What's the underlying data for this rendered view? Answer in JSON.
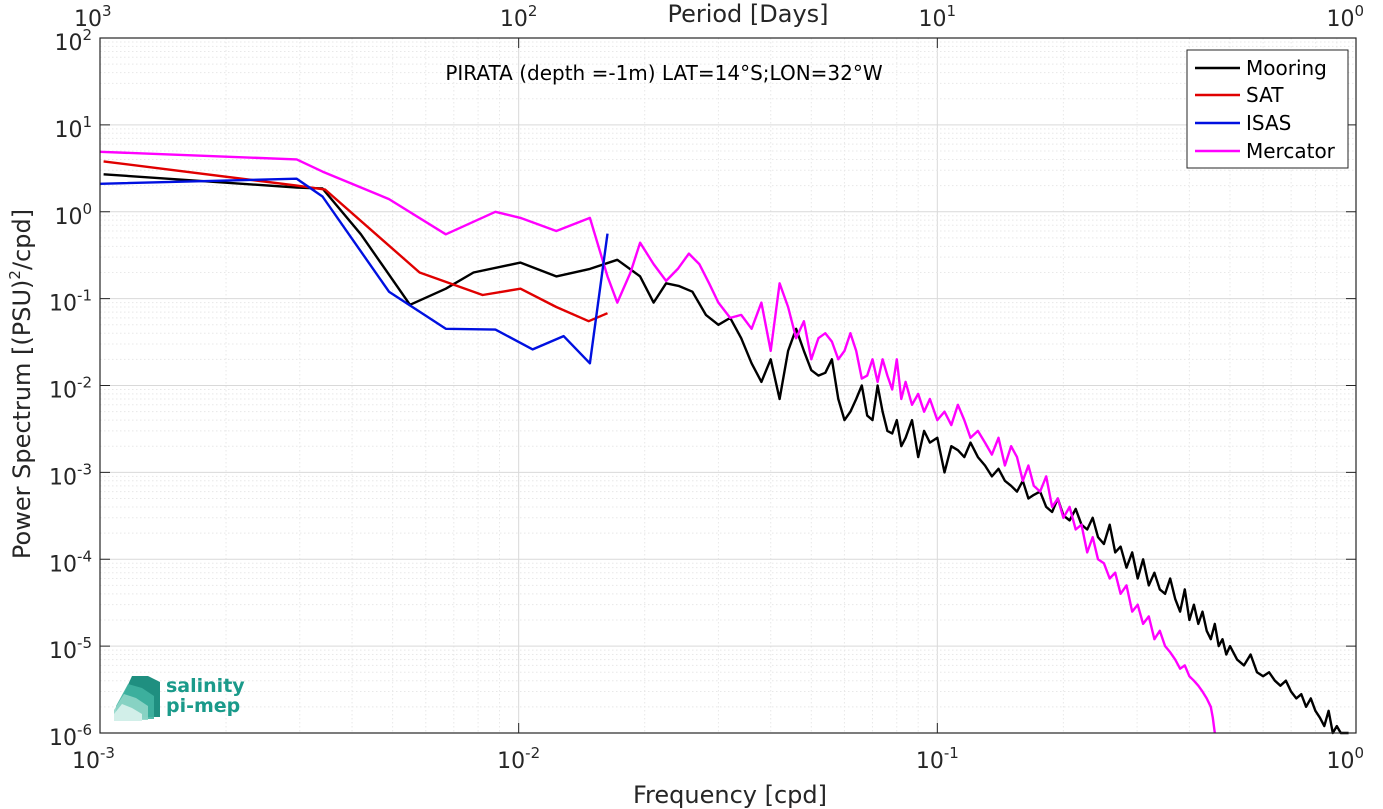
{
  "chart_data": {
    "type": "line",
    "title": "PIRATA (depth =-1m) LAT=14°S;LON=32°W",
    "xlabel": "Frequency [cpd]",
    "ylabel": "Power Spectrum [(PSU)^2/cpd]",
    "ylabel_parts": {
      "base": "Power Spectrum [(PSU)",
      "sup": "2",
      "tail": "/cpd]"
    },
    "x2label": "Period [Days]",
    "xscale": "log",
    "yscale": "log",
    "xlim": [
      0.001,
      1
    ],
    "ylim": [
      1e-06,
      100
    ],
    "grid": true,
    "legend_position": "top-right",
    "x_ticks": [
      {
        "value": 0.001,
        "base": "10",
        "exp": "-3"
      },
      {
        "value": 0.01,
        "base": "10",
        "exp": "-2"
      },
      {
        "value": 0.1,
        "base": "10",
        "exp": "-1"
      },
      {
        "value": 1,
        "base": "10",
        "exp": "0"
      }
    ],
    "x2_ticks": [
      {
        "value": 1000,
        "base": "10",
        "exp": "3"
      },
      {
        "value": 100,
        "base": "10",
        "exp": "2"
      },
      {
        "value": 10,
        "base": "10",
        "exp": "1"
      },
      {
        "value": 1,
        "base": "10",
        "exp": "0"
      }
    ],
    "y_ticks": [
      {
        "value": 100,
        "base": "10",
        "exp": "2"
      },
      {
        "value": 10,
        "base": "10",
        "exp": "1"
      },
      {
        "value": 1,
        "base": "10",
        "exp": "0"
      },
      {
        "value": 0.1,
        "base": "10",
        "exp": "-1"
      },
      {
        "value": 0.01,
        "base": "10",
        "exp": "-2"
      },
      {
        "value": 0.001,
        "base": "10",
        "exp": "-3"
      },
      {
        "value": 0.0001,
        "base": "10",
        "exp": "-4"
      },
      {
        "value": 1e-05,
        "base": "10",
        "exp": "-5"
      },
      {
        "value": 1e-06,
        "base": "10",
        "exp": "-6"
      }
    ],
    "series": [
      {
        "name": "Mooring",
        "color": "#000000",
        "x": [
          0.00102,
          0.00295,
          0.0034,
          0.0042,
          0.0055,
          0.0067,
          0.0078,
          0.0101,
          0.0123,
          0.0148,
          0.0172,
          0.0195,
          0.021,
          0.0225,
          0.0241,
          0.026,
          0.028,
          0.03,
          0.032,
          0.034,
          0.036,
          0.038,
          0.04,
          0.042,
          0.044,
          0.046,
          0.048,
          0.05,
          0.052,
          0.054,
          0.056,
          0.058,
          0.06,
          0.062,
          0.064,
          0.066,
          0.068,
          0.07,
          0.072,
          0.074,
          0.076,
          0.078,
          0.08,
          0.082,
          0.084,
          0.087,
          0.09,
          0.093,
          0.096,
          0.1,
          0.104,
          0.108,
          0.112,
          0.116,
          0.12,
          0.125,
          0.13,
          0.135,
          0.14,
          0.145,
          0.15,
          0.155,
          0.16,
          0.165,
          0.17,
          0.176,
          0.182,
          0.188,
          0.194,
          0.2,
          0.207,
          0.214,
          0.221,
          0.228,
          0.235,
          0.242,
          0.25,
          0.258,
          0.266,
          0.274,
          0.283,
          0.292,
          0.301,
          0.31,
          0.32,
          0.33,
          0.34,
          0.35,
          0.36,
          0.37,
          0.38,
          0.39,
          0.4,
          0.41,
          0.42,
          0.43,
          0.44,
          0.45,
          0.46,
          0.47,
          0.48,
          0.49,
          0.5,
          0.52,
          0.54,
          0.56,
          0.58,
          0.6,
          0.62,
          0.64,
          0.66,
          0.68,
          0.7,
          0.72,
          0.74,
          0.76,
          0.78,
          0.8,
          0.82,
          0.84,
          0.86,
          0.88,
          0.9,
          0.92,
          0.94,
          0.96
        ],
        "y": [
          2.7,
          1.9,
          1.85,
          0.55,
          0.085,
          0.13,
          0.2,
          0.26,
          0.18,
          0.22,
          0.28,
          0.18,
          0.09,
          0.15,
          0.14,
          0.12,
          0.065,
          0.05,
          0.06,
          0.035,
          0.018,
          0.011,
          0.02,
          0.007,
          0.025,
          0.045,
          0.025,
          0.015,
          0.013,
          0.014,
          0.02,
          0.007,
          0.004,
          0.005,
          0.007,
          0.01,
          0.0045,
          0.004,
          0.01,
          0.005,
          0.003,
          0.0028,
          0.004,
          0.002,
          0.0025,
          0.004,
          0.0015,
          0.003,
          0.0022,
          0.0025,
          0.001,
          0.002,
          0.0018,
          0.0015,
          0.0022,
          0.0015,
          0.0012,
          0.0009,
          0.0011,
          0.0008,
          0.0007,
          0.0006,
          0.0008,
          0.0005,
          0.00055,
          0.0006,
          0.0004,
          0.00035,
          0.0005,
          0.00032,
          0.00028,
          0.00038,
          0.00025,
          0.00022,
          0.0003,
          0.00018,
          0.00015,
          0.00025,
          0.00012,
          0.00014,
          8e-05,
          0.00012,
          6e-05,
          0.0001,
          5e-05,
          7e-05,
          4.5e-05,
          4e-05,
          6e-05,
          3.5e-05,
          2.5e-05,
          4.5e-05,
          2e-05,
          3e-05,
          1.8e-05,
          2.5e-05,
          1.5e-05,
          1.2e-05,
          1.8e-05,
          1e-05,
          1.2e-05,
          8e-06,
          1e-05,
          7e-06,
          6e-06,
          8e-06,
          5e-06,
          4.5e-06,
          5e-06,
          4e-06,
          3.5e-06,
          4e-06,
          3e-06,
          2.5e-06,
          2.8e-06,
          2e-06,
          2.5e-06,
          1.8e-06,
          1.5e-06,
          1.2e-06,
          1.8e-06,
          1e-06,
          1.2e-06,
          1e-06,
          1e-06,
          1e-06
        ]
      },
      {
        "name": "SAT",
        "color": "#e00000",
        "x": [
          0.00102,
          0.00295,
          0.00345,
          0.0058,
          0.0082,
          0.0101,
          0.0123,
          0.0147,
          0.0163
        ],
        "y": [
          3.8,
          2.0,
          1.8,
          0.2,
          0.11,
          0.13,
          0.08,
          0.055,
          0.068
        ]
      },
      {
        "name": "ISAS",
        "color": "#0010e0",
        "x": [
          0.001,
          0.00295,
          0.0034,
          0.0049,
          0.0067,
          0.0088,
          0.0108,
          0.0128,
          0.0148,
          0.0163
        ],
        "y": [
          2.1,
          2.4,
          1.5,
          0.12,
          0.045,
          0.044,
          0.026,
          0.037,
          0.018,
          0.56
        ]
      },
      {
        "name": "Mercator",
        "color": "#ff00ff",
        "x": [
          0.001,
          0.00295,
          0.0034,
          0.0049,
          0.0067,
          0.0088,
          0.0101,
          0.0123,
          0.0148,
          0.0163,
          0.0172,
          0.0185,
          0.0195,
          0.021,
          0.0225,
          0.024,
          0.0255,
          0.027,
          0.0285,
          0.03,
          0.032,
          0.034,
          0.036,
          0.038,
          0.04,
          0.042,
          0.044,
          0.046,
          0.048,
          0.05,
          0.052,
          0.054,
          0.056,
          0.058,
          0.06,
          0.062,
          0.064,
          0.066,
          0.068,
          0.07,
          0.072,
          0.074,
          0.076,
          0.078,
          0.08,
          0.082,
          0.084,
          0.087,
          0.09,
          0.093,
          0.096,
          0.1,
          0.104,
          0.108,
          0.112,
          0.116,
          0.12,
          0.125,
          0.13,
          0.135,
          0.14,
          0.145,
          0.15,
          0.155,
          0.16,
          0.165,
          0.17,
          0.176,
          0.182,
          0.188,
          0.194,
          0.2,
          0.207,
          0.214,
          0.221,
          0.228,
          0.235,
          0.242,
          0.25,
          0.258,
          0.266,
          0.274,
          0.283,
          0.292,
          0.301,
          0.31,
          0.32,
          0.33,
          0.34,
          0.35,
          0.36,
          0.37,
          0.38,
          0.39,
          0.4,
          0.41,
          0.42,
          0.43,
          0.44,
          0.45,
          0.455,
          0.46
        ],
        "y": [
          4.9,
          4.0,
          2.9,
          1.4,
          0.55,
          1.0,
          0.85,
          0.6,
          0.85,
          0.18,
          0.09,
          0.2,
          0.44,
          0.25,
          0.16,
          0.22,
          0.33,
          0.25,
          0.15,
          0.09,
          0.06,
          0.065,
          0.045,
          0.09,
          0.025,
          0.15,
          0.08,
          0.035,
          0.055,
          0.02,
          0.035,
          0.04,
          0.032,
          0.02,
          0.025,
          0.04,
          0.025,
          0.012,
          0.013,
          0.02,
          0.011,
          0.02,
          0.013,
          0.009,
          0.02,
          0.007,
          0.011,
          0.006,
          0.008,
          0.005,
          0.007,
          0.004,
          0.005,
          0.0035,
          0.006,
          0.004,
          0.0025,
          0.003,
          0.0022,
          0.0016,
          0.0025,
          0.0012,
          0.002,
          0.0015,
          0.0008,
          0.0012,
          0.0007,
          0.0006,
          0.0009,
          0.0004,
          0.0005,
          0.0003,
          0.0004,
          0.00022,
          0.00025,
          0.00012,
          0.00018,
          0.0001,
          9e-05,
          6e-05,
          7e-05,
          4e-05,
          5e-05,
          2.5e-05,
          3e-05,
          1.8e-05,
          2.2e-05,
          1.2e-05,
          1.5e-05,
          1e-05,
          8.5e-06,
          7e-06,
          5.5e-06,
          6e-06,
          4.5e-06,
          4e-06,
          3.5e-06,
          3e-06,
          2.5e-06,
          2e-06,
          1.5e-06,
          1e-06
        ]
      }
    ]
  },
  "logo": {
    "line1": "salinity",
    "line2": "pi-mep"
  }
}
